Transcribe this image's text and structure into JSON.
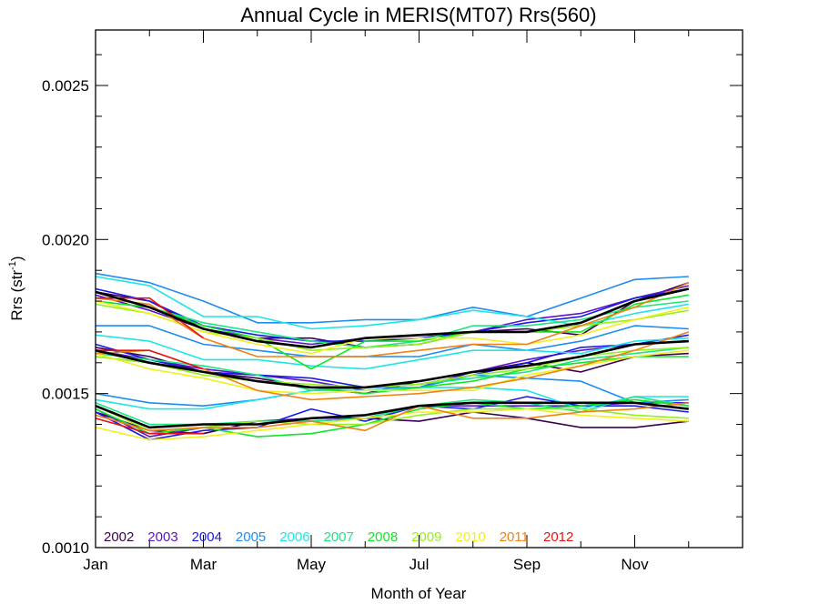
{
  "chart_data": {
    "type": "line",
    "title": "Annual Cycle in MERIS(MT07) Rrs(560)",
    "xlabel": "Month of Year",
    "ylabel": "Rrs (str",
    "ylabel_superscript": "-1",
    "ylabel_suffix": ")",
    "xlim": [
      1,
      13
    ],
    "ylim": [
      0.001,
      0.00268
    ],
    "x_ticks": [
      {
        "value": 1,
        "label": "Jan"
      },
      {
        "value": 3,
        "label": "Mar"
      },
      {
        "value": 5,
        "label": "May"
      },
      {
        "value": 7,
        "label": "Jul"
      },
      {
        "value": 9,
        "label": "Sep"
      },
      {
        "value": 11,
        "label": "Nov"
      }
    ],
    "y_ticks": [
      {
        "value": 0.001,
        "label": "0.0010"
      },
      {
        "value": 0.0015,
        "label": "0.0015"
      },
      {
        "value": 0.002,
        "label": "0.0020"
      },
      {
        "value": 0.0025,
        "label": "0.0025"
      }
    ],
    "y_minor_step": 0.0001,
    "grid": false,
    "legend_position": "bottom-left",
    "x": [
      1,
      2,
      3,
      4,
      5,
      6,
      7,
      8,
      9,
      10,
      11,
      12
    ],
    "series": [
      {
        "name": "2002",
        "color": "#3a0050",
        "group": "high",
        "values": [
          0.00183,
          0.0018,
          0.00171,
          0.00168,
          0.00168,
          0.00165,
          0.00166,
          0.0017,
          0.00171,
          0.00169,
          0.0018,
          0.00186
        ]
      },
      {
        "name": "2002",
        "color": "#3a0050",
        "group": "middle",
        "values": [
          0.00165,
          0.00162,
          0.00157,
          0.00155,
          0.00152,
          0.0015,
          0.00154,
          0.00157,
          0.0016,
          0.00157,
          0.00162,
          0.00163
        ]
      },
      {
        "name": "2002",
        "color": "#3a0050",
        "group": "low",
        "values": [
          0.00144,
          0.00138,
          0.00137,
          0.00141,
          0.00141,
          0.00142,
          0.00141,
          0.00144,
          0.00142,
          0.00139,
          0.00139,
          0.00141
        ]
      },
      {
        "name": "2003",
        "color": "#5a14c8",
        "group": "high",
        "values": [
          0.00182,
          0.00177,
          0.00171,
          0.00168,
          0.00166,
          0.00168,
          0.00168,
          0.0017,
          0.00174,
          0.00176,
          0.00181,
          0.00185
        ]
      },
      {
        "name": "2003",
        "color": "#5a14c8",
        "group": "middle",
        "values": [
          0.00164,
          0.00161,
          0.00158,
          0.00156,
          0.00154,
          0.00151,
          0.00152,
          0.00157,
          0.00161,
          0.00164,
          0.00166,
          0.00167
        ]
      },
      {
        "name": "2003",
        "color": "#5a14c8",
        "group": "low",
        "values": [
          0.00145,
          0.00136,
          0.00139,
          0.00141,
          0.00142,
          0.00142,
          0.00146,
          0.00146,
          0.00146,
          0.00146,
          0.00147,
          0.00147
        ]
      },
      {
        "name": "2004",
        "color": "#1a1ae6",
        "group": "high",
        "values": [
          0.00184,
          0.0018,
          0.00172,
          0.00169,
          0.00167,
          0.00167,
          0.00168,
          0.0017,
          0.00173,
          0.00175,
          0.00181,
          0.00184
        ]
      },
      {
        "name": "2004",
        "color": "#1a1ae6",
        "group": "middle",
        "values": [
          0.00166,
          0.00161,
          0.00157,
          0.00156,
          0.00155,
          0.00152,
          0.00153,
          0.00156,
          0.0016,
          0.00165,
          0.00166,
          0.00169
        ]
      },
      {
        "name": "2004",
        "color": "#1a1ae6",
        "group": "low",
        "values": [
          0.00144,
          0.00135,
          0.00138,
          0.00139,
          0.00145,
          0.00141,
          0.00146,
          0.00145,
          0.00149,
          0.00146,
          0.00146,
          0.00144
        ]
      },
      {
        "name": "2005",
        "color": "#1e8cf0",
        "group": "high",
        "values": [
          0.00189,
          0.00186,
          0.0018,
          0.00173,
          0.00173,
          0.00174,
          0.00174,
          0.00178,
          0.00175,
          0.00181,
          0.00187,
          0.00188
        ]
      },
      {
        "name": "2005",
        "color": "#1e8cf0",
        "group": "middle",
        "values": [
          0.00172,
          0.00172,
          0.00166,
          0.00164,
          0.00162,
          0.00162,
          0.00162,
          0.00166,
          0.00164,
          0.00167,
          0.00172,
          0.00171
        ]
      },
      {
        "name": "2005",
        "color": "#1e8cf0",
        "group": "low",
        "values": [
          0.0015,
          0.00147,
          0.00146,
          0.00148,
          0.00151,
          0.00152,
          0.00152,
          0.00156,
          0.00155,
          0.00154,
          0.00147,
          0.00148
        ]
      },
      {
        "name": "2006",
        "color": "#1ee6e6",
        "group": "high",
        "values": [
          0.00188,
          0.00185,
          0.00175,
          0.00175,
          0.00171,
          0.00172,
          0.00174,
          0.00177,
          0.00175,
          0.00172,
          0.00176,
          0.00179
        ]
      },
      {
        "name": "2006",
        "color": "#1ee6e6",
        "group": "middle",
        "values": [
          0.00169,
          0.00167,
          0.00161,
          0.00161,
          0.00159,
          0.00158,
          0.00161,
          0.00164,
          0.00164,
          0.00163,
          0.00167,
          0.00168
        ]
      },
      {
        "name": "2006",
        "color": "#1ee6e6",
        "group": "low",
        "values": [
          0.00148,
          0.00145,
          0.00145,
          0.00148,
          0.00151,
          0.00151,
          0.00152,
          0.00152,
          0.00151,
          0.00145,
          0.00149,
          0.00149
        ]
      },
      {
        "name": "2007",
        "color": "#1ee682",
        "group": "high",
        "values": [
          0.0018,
          0.00178,
          0.00173,
          0.0017,
          0.00167,
          0.00165,
          0.00167,
          0.00172,
          0.00172,
          0.00174,
          0.00178,
          0.0018
        ]
      },
      {
        "name": "2007",
        "color": "#1ee682",
        "group": "middle",
        "values": [
          0.00163,
          0.00161,
          0.00159,
          0.00156,
          0.00151,
          0.00152,
          0.00153,
          0.00155,
          0.00157,
          0.00161,
          0.00163,
          0.00165
        ]
      },
      {
        "name": "2007",
        "color": "#1ee682",
        "group": "low",
        "values": [
          0.00147,
          0.0014,
          0.0014,
          0.00141,
          0.00141,
          0.00142,
          0.00146,
          0.00148,
          0.00147,
          0.00144,
          0.00149,
          0.00146
        ]
      },
      {
        "name": "2008",
        "color": "#10e628",
        "group": "high",
        "values": [
          0.0018,
          0.00178,
          0.00172,
          0.00168,
          0.00158,
          0.00167,
          0.00167,
          0.0017,
          0.0017,
          0.0017,
          0.00179,
          0.00182
        ]
      },
      {
        "name": "2008",
        "color": "#10e628",
        "group": "middle",
        "values": [
          0.00162,
          0.0016,
          0.00157,
          0.00154,
          0.00152,
          0.0015,
          0.00152,
          0.00154,
          0.00158,
          0.0016,
          0.00162,
          0.00162
        ]
      },
      {
        "name": "2008",
        "color": "#10e628",
        "group": "low",
        "values": [
          0.00145,
          0.00137,
          0.00139,
          0.00136,
          0.00137,
          0.0014,
          0.00145,
          0.00147,
          0.00145,
          0.00146,
          0.00148,
          0.00146
        ]
      },
      {
        "name": "2009",
        "color": "#96f01e",
        "group": "high",
        "values": [
          0.00179,
          0.00176,
          0.0017,
          0.00168,
          0.00164,
          0.00165,
          0.00166,
          0.0017,
          0.0017,
          0.00172,
          0.00174,
          0.00177
        ]
      },
      {
        "name": "2009",
        "color": "#96f01e",
        "group": "middle",
        "values": [
          0.00162,
          0.0016,
          0.00156,
          0.00154,
          0.00153,
          0.00152,
          0.00153,
          0.00156,
          0.00158,
          0.00162,
          0.00164,
          0.00165
        ]
      },
      {
        "name": "2009",
        "color": "#96f01e",
        "group": "low",
        "values": [
          0.00146,
          0.00138,
          0.00139,
          0.00141,
          0.0014,
          0.0014,
          0.00143,
          0.00145,
          0.00145,
          0.00145,
          0.00143,
          0.00142
        ]
      },
      {
        "name": "2010",
        "color": "#f0f01e",
        "group": "high",
        "values": [
          0.0018,
          0.00176,
          0.0017,
          0.00166,
          0.00163,
          0.00168,
          0.00168,
          0.00168,
          0.00166,
          0.00169,
          0.00174,
          0.00178
        ]
      },
      {
        "name": "2010",
        "color": "#f0f01e",
        "group": "middle",
        "values": [
          0.00163,
          0.00158,
          0.00155,
          0.00151,
          0.0015,
          0.00151,
          0.00151,
          0.00151,
          0.00156,
          0.00159,
          0.00162,
          0.00164
        ]
      },
      {
        "name": "2010",
        "color": "#f0f01e",
        "group": "low",
        "values": [
          0.00139,
          0.00135,
          0.00136,
          0.00138,
          0.0014,
          0.00142,
          0.00144,
          0.00144,
          0.00145,
          0.00143,
          0.00142,
          0.00141
        ]
      },
      {
        "name": "2011",
        "color": "#f08214",
        "group": "high",
        "values": [
          0.00181,
          0.00179,
          0.00168,
          0.00162,
          0.00162,
          0.00162,
          0.00164,
          0.00166,
          0.00166,
          0.00172,
          0.00178,
          0.00186
        ]
      },
      {
        "name": "2011",
        "color": "#f08214",
        "group": "middle",
        "values": [
          0.00163,
          0.00164,
          0.00158,
          0.00151,
          0.00148,
          0.00149,
          0.0015,
          0.00152,
          0.00155,
          0.00159,
          0.00164,
          0.0017
        ]
      },
      {
        "name": "2011",
        "color": "#f08214",
        "group": "low",
        "values": [
          0.00143,
          0.00138,
          0.00139,
          0.00139,
          0.00141,
          0.00138,
          0.00146,
          0.00142,
          0.00142,
          0.00144,
          0.00145,
          0.00147
        ]
      },
      {
        "name": "2012",
        "color": "#e61414",
        "group": "high",
        "values": [
          0.00181,
          0.00181,
          0.00168,
          null,
          null,
          null,
          null,
          null,
          null,
          null,
          null,
          null
        ]
      },
      {
        "name": "2012",
        "color": "#e61414",
        "group": "middle",
        "values": [
          0.00164,
          0.00164,
          0.00158,
          null,
          null,
          null,
          null,
          null,
          null,
          null,
          null,
          null
        ]
      },
      {
        "name": "2012",
        "color": "#e61414",
        "group": "low",
        "values": [
          0.00142,
          0.00137,
          0.00137,
          null,
          null,
          null,
          null,
          null,
          null,
          null,
          null,
          null
        ]
      },
      {
        "name": "",
        "color": "#000000",
        "group": "mean-high",
        "values": [
          0.00183,
          0.00178,
          0.00171,
          0.00167,
          0.00165,
          0.00168,
          0.00169,
          0.0017,
          0.0017,
          0.00173,
          0.0018,
          0.00184
        ]
      },
      {
        "name": "",
        "color": "#000000",
        "group": "mean-middle",
        "values": [
          0.00164,
          0.0016,
          0.00157,
          0.00154,
          0.00152,
          0.00152,
          0.00154,
          0.00157,
          0.00159,
          0.00162,
          0.00166,
          0.00167
        ]
      },
      {
        "name": "",
        "color": "#000000",
        "group": "mean-low",
        "values": [
          0.00146,
          0.00139,
          0.0014,
          0.0014,
          0.00142,
          0.00143,
          0.00146,
          0.00147,
          0.00147,
          0.00147,
          0.00147,
          0.00145
        ]
      }
    ],
    "legend": [
      {
        "label": "2002",
        "color": "#3a0050"
      },
      {
        "label": "2003",
        "color": "#5a14c8"
      },
      {
        "label": "2004",
        "color": "#1a1ae6"
      },
      {
        "label": "2005",
        "color": "#1e8cf0"
      },
      {
        "label": "2006",
        "color": "#1ee6e6"
      },
      {
        "label": "2007",
        "color": "#1ee682"
      },
      {
        "label": "2008",
        "color": "#10e628"
      },
      {
        "label": "2009",
        "color": "#96f01e"
      },
      {
        "label": "2010",
        "color": "#f0f01e"
      },
      {
        "label": "2011",
        "color": "#f08214"
      },
      {
        "label": "2012",
        "color": "#e61414"
      }
    ]
  }
}
